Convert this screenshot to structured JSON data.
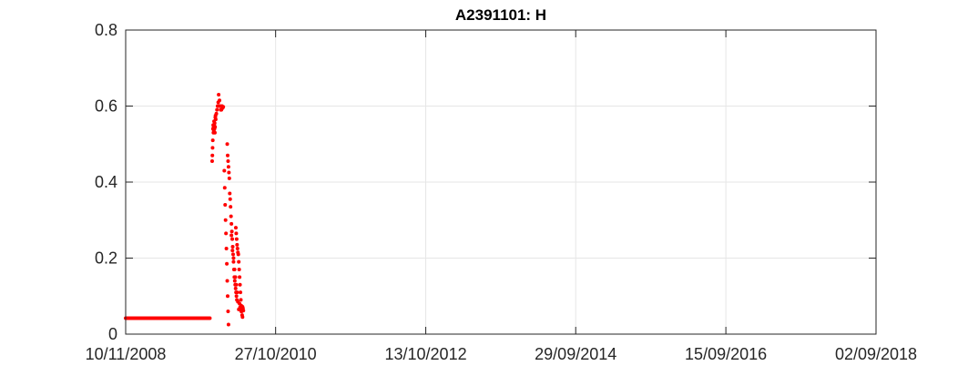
{
  "chart_data": {
    "type": "scatter",
    "title": "A2391101: H",
    "xlabel": "",
    "ylabel": "",
    "x_axis": {
      "type": "date",
      "range": [
        "2008-11-10",
        "2018-09-02"
      ],
      "ticks": [
        "2008-11-10",
        "2010-10-27",
        "2012-10-13",
        "2014-09-29",
        "2016-09-15",
        "2018-09-02"
      ],
      "tick_labels": [
        "10/11/2008",
        "27/10/2010",
        "13/10/2012",
        "29/09/2014",
        "15/09/2016",
        "02/09/2018"
      ]
    },
    "y_axis": {
      "range": [
        0,
        0.8
      ],
      "ticks": [
        0,
        0.2,
        0.4,
        0.6,
        0.8
      ],
      "tick_labels": [
        "0",
        "0.2",
        "0.4",
        "0.6",
        "0.8"
      ]
    },
    "grid": true,
    "marker_color": "#ff0000",
    "series": [
      {
        "marker": "dot",
        "points": [
          [
            "2008-11-10",
            0.042
          ],
          [
            "2008-11-16",
            0.042
          ],
          [
            "2008-11-22",
            0.042
          ],
          [
            "2008-11-28",
            0.042
          ],
          [
            "2008-12-04",
            0.042
          ],
          [
            "2008-12-10",
            0.042
          ],
          [
            "2008-12-16",
            0.042
          ],
          [
            "2008-12-22",
            0.042
          ],
          [
            "2008-12-28",
            0.042
          ],
          [
            "2009-01-03",
            0.042
          ],
          [
            "2009-01-09",
            0.042
          ],
          [
            "2009-01-15",
            0.042
          ],
          [
            "2009-01-21",
            0.042
          ],
          [
            "2009-01-27",
            0.042
          ],
          [
            "2009-02-02",
            0.042
          ],
          [
            "2009-02-08",
            0.042
          ],
          [
            "2009-02-14",
            0.042
          ],
          [
            "2009-02-20",
            0.042
          ],
          [
            "2009-02-26",
            0.042
          ],
          [
            "2009-03-04",
            0.042
          ],
          [
            "2009-03-10",
            0.042
          ],
          [
            "2009-03-16",
            0.042
          ],
          [
            "2009-03-22",
            0.042
          ],
          [
            "2009-03-28",
            0.042
          ],
          [
            "2009-04-03",
            0.042
          ],
          [
            "2009-04-09",
            0.042
          ],
          [
            "2009-04-15",
            0.042
          ],
          [
            "2009-04-21",
            0.042
          ],
          [
            "2009-04-27",
            0.042
          ],
          [
            "2009-05-03",
            0.042
          ],
          [
            "2009-05-09",
            0.042
          ],
          [
            "2009-05-15",
            0.042
          ],
          [
            "2009-05-21",
            0.042
          ],
          [
            "2009-05-27",
            0.042
          ],
          [
            "2009-06-02",
            0.042
          ],
          [
            "2009-06-08",
            0.042
          ],
          [
            "2009-06-14",
            0.042
          ],
          [
            "2009-06-20",
            0.042
          ],
          [
            "2009-06-26",
            0.042
          ],
          [
            "2009-07-02",
            0.042
          ],
          [
            "2009-07-08",
            0.042
          ],
          [
            "2009-07-14",
            0.042
          ],
          [
            "2009-07-20",
            0.042
          ],
          [
            "2009-07-26",
            0.042
          ],
          [
            "2009-08-01",
            0.042
          ],
          [
            "2009-08-07",
            0.042
          ],
          [
            "2009-08-13",
            0.042
          ],
          [
            "2009-08-19",
            0.042
          ],
          [
            "2009-08-25",
            0.042
          ],
          [
            "2009-08-31",
            0.042
          ],
          [
            "2009-09-06",
            0.042
          ],
          [
            "2009-09-12",
            0.042
          ],
          [
            "2009-09-18",
            0.042
          ],
          [
            "2009-09-24",
            0.042
          ],
          [
            "2009-09-30",
            0.042
          ],
          [
            "2009-10-06",
            0.042
          ],
          [
            "2009-10-12",
            0.042
          ],
          [
            "2009-10-18",
            0.042
          ],
          [
            "2009-10-24",
            0.042
          ],
          [
            "2009-10-30",
            0.042
          ],
          [
            "2009-11-05",
            0.042
          ],
          [
            "2009-11-11",
            0.042
          ],
          [
            "2009-11-17",
            0.042
          ],
          [
            "2009-11-23",
            0.042
          ],
          [
            "2009-11-29",
            0.042
          ],
          [
            "2009-12-05",
            0.042
          ],
          [
            "2009-12-11",
            0.042
          ],
          [
            "2009-12-17",
            0.042
          ],
          [
            "2009-12-28",
            0.455
          ],
          [
            "2009-12-29",
            0.47
          ],
          [
            "2009-12-30",
            0.49
          ],
          [
            "2009-12-31",
            0.51
          ],
          [
            "2010-01-01",
            0.54
          ],
          [
            "2010-01-02",
            0.55
          ],
          [
            "2010-01-03",
            0.53
          ],
          [
            "2010-01-04",
            0.545
          ],
          [
            "2010-01-05",
            0.535
          ],
          [
            "2010-01-06",
            0.56
          ],
          [
            "2010-01-07",
            0.55
          ],
          [
            "2010-01-08",
            0.54
          ],
          [
            "2010-01-09",
            0.555
          ],
          [
            "2010-01-10",
            0.53
          ],
          [
            "2010-01-11",
            0.545
          ],
          [
            "2010-01-12",
            0.57
          ],
          [
            "2010-01-13",
            0.575
          ],
          [
            "2010-01-14",
            0.565
          ],
          [
            "2010-01-17",
            0.58
          ],
          [
            "2010-01-20",
            0.59
          ],
          [
            "2010-01-23",
            0.6
          ],
          [
            "2010-01-26",
            0.61
          ],
          [
            "2010-01-28",
            0.63
          ],
          [
            "2010-01-30",
            0.6
          ],
          [
            "2010-02-01",
            0.615
          ],
          [
            "2010-02-04",
            0.6
          ],
          [
            "2010-02-07",
            0.59
          ],
          [
            "2010-02-10",
            0.59
          ],
          [
            "2010-02-13",
            0.6
          ],
          [
            "2010-02-16",
            0.595
          ],
          [
            "2010-02-19",
            0.598
          ],
          [
            "2010-02-24",
            0.43
          ],
          [
            "2010-02-26",
            0.385
          ],
          [
            "2010-02-28",
            0.34
          ],
          [
            "2010-03-02",
            0.3
          ],
          [
            "2010-03-04",
            0.265
          ],
          [
            "2010-03-06",
            0.225
          ],
          [
            "2010-03-08",
            0.185
          ],
          [
            "2010-03-10",
            0.14
          ],
          [
            "2010-03-12",
            0.1
          ],
          [
            "2010-03-14",
            0.06
          ],
          [
            "2010-03-16",
            0.025
          ],
          [
            "2010-03-10",
            0.5
          ],
          [
            "2010-03-12",
            0.47
          ],
          [
            "2010-03-14",
            0.455
          ],
          [
            "2010-03-16",
            0.44
          ],
          [
            "2010-03-18",
            0.425
          ],
          [
            "2010-03-20",
            0.41
          ],
          [
            "2010-03-22",
            0.37
          ],
          [
            "2010-03-24",
            0.355
          ],
          [
            "2010-03-26",
            0.335
          ],
          [
            "2010-03-28",
            0.31
          ],
          [
            "2010-03-30",
            0.29
          ],
          [
            "2010-04-01",
            0.27
          ],
          [
            "2010-04-03",
            0.25
          ],
          [
            "2010-04-05",
            0.23
          ],
          [
            "2010-04-07",
            0.21
          ],
          [
            "2010-04-09",
            0.19
          ],
          [
            "2010-04-11",
            0.17
          ],
          [
            "2010-04-13",
            0.15
          ],
          [
            "2010-04-15",
            0.14
          ],
          [
            "2010-04-17",
            0.13
          ],
          [
            "2010-04-19",
            0.12
          ],
          [
            "2010-04-21",
            0.11
          ],
          [
            "2010-04-23",
            0.1
          ],
          [
            "2010-04-25",
            0.09
          ],
          [
            "2010-03-30",
            0.26
          ],
          [
            "2010-04-04",
            0.22
          ],
          [
            "2010-04-09",
            0.2
          ],
          [
            "2010-04-14",
            0.17
          ],
          [
            "2010-04-18",
            0.15
          ],
          [
            "2010-04-22",
            0.13
          ],
          [
            "2010-04-26",
            0.11
          ],
          [
            "2010-04-30",
            0.085
          ],
          [
            "2010-05-04",
            0.065
          ],
          [
            "2010-04-20",
            0.28
          ],
          [
            "2010-04-22",
            0.265
          ],
          [
            "2010-04-24",
            0.25
          ],
          [
            "2010-04-26",
            0.235
          ],
          [
            "2010-04-28",
            0.225
          ],
          [
            "2010-04-30",
            0.215
          ],
          [
            "2010-05-02",
            0.21
          ],
          [
            "2010-05-04",
            0.19
          ],
          [
            "2010-05-06",
            0.17
          ],
          [
            "2010-05-08",
            0.15
          ],
          [
            "2010-05-10",
            0.13
          ],
          [
            "2010-05-12",
            0.11
          ],
          [
            "2010-05-14",
            0.09
          ],
          [
            "2010-05-16",
            0.075
          ],
          [
            "2010-05-18",
            0.06
          ],
          [
            "2010-05-20",
            0.05
          ],
          [
            "2010-05-22",
            0.045
          ],
          [
            "2010-05-08",
            0.08
          ],
          [
            "2010-05-10",
            0.07
          ],
          [
            "2010-05-12",
            0.065
          ],
          [
            "2010-05-14",
            0.07
          ],
          [
            "2010-05-16",
            0.06
          ],
          [
            "2010-05-18",
            0.065
          ],
          [
            "2010-05-20",
            0.07
          ],
          [
            "2010-05-22",
            0.072
          ],
          [
            "2010-05-24",
            0.068
          ],
          [
            "2010-05-26",
            0.062
          ]
        ]
      }
    ]
  }
}
